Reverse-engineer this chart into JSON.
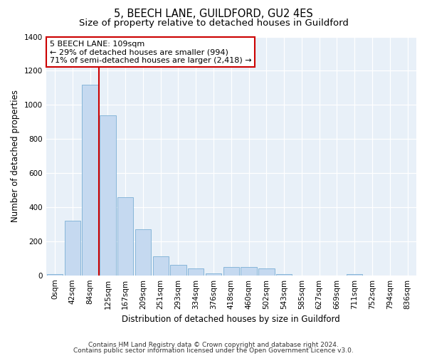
{
  "title": "5, BEECH LANE, GUILDFORD, GU2 4ES",
  "subtitle": "Size of property relative to detached houses in Guildford",
  "xlabel": "Distribution of detached houses by size in Guildford",
  "ylabel": "Number of detached properties",
  "footer1": "Contains HM Land Registry data © Crown copyright and database right 2024.",
  "footer2": "Contains public sector information licensed under the Open Government Licence v3.0.",
  "categories": [
    "0sqm",
    "42sqm",
    "84sqm",
    "125sqm",
    "167sqm",
    "209sqm",
    "251sqm",
    "293sqm",
    "334sqm",
    "376sqm",
    "418sqm",
    "460sqm",
    "502sqm",
    "543sqm",
    "585sqm",
    "627sqm",
    "669sqm",
    "711sqm",
    "752sqm",
    "794sqm",
    "836sqm"
  ],
  "values": [
    5,
    320,
    1120,
    940,
    460,
    270,
    110,
    60,
    40,
    10,
    50,
    50,
    40,
    5,
    0,
    0,
    0,
    5,
    0,
    0,
    0
  ],
  "bar_color": "#c5d9f0",
  "bar_edge_color": "#7bafd4",
  "vline_x": 2.5,
  "vline_color": "#cc0000",
  "ylim": [
    0,
    1400
  ],
  "yticks": [
    0,
    200,
    400,
    600,
    800,
    1000,
    1200,
    1400
  ],
  "annotation_line1": "5 BEECH LANE: 109sqm",
  "annotation_line2": "← 29% of detached houses are smaller (994)",
  "annotation_line3": "71% of semi-detached houses are larger (2,418) →",
  "annotation_box_color": "#cc0000",
  "bg_color": "#e8f0f8",
  "grid_color": "#ffffff",
  "title_fontsize": 10.5,
  "subtitle_fontsize": 9.5,
  "axis_label_fontsize": 8.5,
  "tick_fontsize": 7.5,
  "footer_fontsize": 6.5,
  "ann_fontsize": 8
}
